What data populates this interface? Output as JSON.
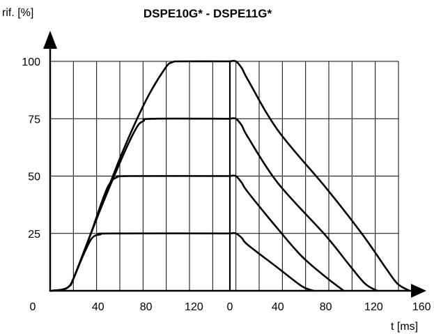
{
  "chart_data": {
    "type": "line",
    "title": "DSPE10G* - DSPE11G*",
    "ylabel": "rif. [%]",
    "xlabel": "t [ms]",
    "origin_label": "0",
    "ylim": [
      0,
      100
    ],
    "y_ticks": [
      "25",
      "50",
      "75",
      "100"
    ],
    "y_tick_values": [
      25,
      50,
      75,
      100
    ],
    "grid": true,
    "segments": [
      {
        "name": "rise",
        "x_ticks": [
          "40",
          "80",
          "120"
        ],
        "x_tick_values": [
          40,
          80,
          120
        ],
        "xlim": [
          0,
          150
        ]
      },
      {
        "name": "fall",
        "x_ticks": [
          "0",
          "40",
          "80",
          "120",
          "160"
        ],
        "x_tick_values": [
          0,
          40,
          80,
          120,
          160
        ],
        "xlim": [
          0,
          180
        ]
      }
    ],
    "series": [
      {
        "level": 100,
        "rise": [
          [
            0,
            0
          ],
          [
            10,
            0.5
          ],
          [
            16,
            2
          ],
          [
            20,
            6
          ],
          [
            40,
            33
          ],
          [
            60,
            60
          ],
          [
            80,
            83
          ],
          [
            96,
            97
          ],
          [
            102,
            99.6
          ],
          [
            110,
            100
          ],
          [
            150,
            100
          ]
        ],
        "fall": [
          [
            0,
            100
          ],
          [
            5,
            100
          ],
          [
            10,
            97
          ],
          [
            15,
            92
          ],
          [
            40,
            70
          ],
          [
            80,
            45
          ],
          [
            110,
            25
          ],
          [
            130,
            10
          ],
          [
            140,
            3
          ],
          [
            150,
            0
          ]
        ]
      },
      {
        "level": 75,
        "rise": [
          [
            0,
            0
          ],
          [
            10,
            0.5
          ],
          [
            16,
            2
          ],
          [
            20,
            6
          ],
          [
            40,
            33
          ],
          [
            60,
            58
          ],
          [
            72,
            71
          ],
          [
            78,
            74
          ],
          [
            85,
            75
          ],
          [
            150,
            75
          ]
        ],
        "fall": [
          [
            0,
            75
          ],
          [
            5,
            75
          ],
          [
            10,
            72
          ],
          [
            15,
            67
          ],
          [
            40,
            47
          ],
          [
            80,
            24
          ],
          [
            100,
            11
          ],
          [
            113,
            3
          ],
          [
            123,
            0
          ]
        ]
      },
      {
        "level": 50,
        "rise": [
          [
            0,
            0
          ],
          [
            10,
            0.5
          ],
          [
            16,
            2
          ],
          [
            20,
            6
          ],
          [
            32,
            22
          ],
          [
            44,
            40
          ],
          [
            50,
            47
          ],
          [
            56,
            49.5
          ],
          [
            65,
            50
          ],
          [
            150,
            50
          ]
        ],
        "fall": [
          [
            0,
            50
          ],
          [
            5,
            50
          ],
          [
            10,
            47
          ],
          [
            15,
            43
          ],
          [
            40,
            27
          ],
          [
            60,
            15
          ],
          [
            80,
            6
          ],
          [
            95,
            0
          ]
        ]
      },
      {
        "level": 25,
        "rise": [
          [
            0,
            0
          ],
          [
            10,
            0.5
          ],
          [
            16,
            2
          ],
          [
            20,
            6
          ],
          [
            28,
            16
          ],
          [
            35,
            23
          ],
          [
            42,
            24.6
          ],
          [
            50,
            25
          ],
          [
            150,
            25
          ]
        ],
        "fall": [
          [
            0,
            25
          ],
          [
            5,
            25
          ],
          [
            10,
            23
          ],
          [
            15,
            20
          ],
          [
            40,
            10
          ],
          [
            60,
            2
          ],
          [
            70,
            0
          ]
        ]
      }
    ]
  }
}
